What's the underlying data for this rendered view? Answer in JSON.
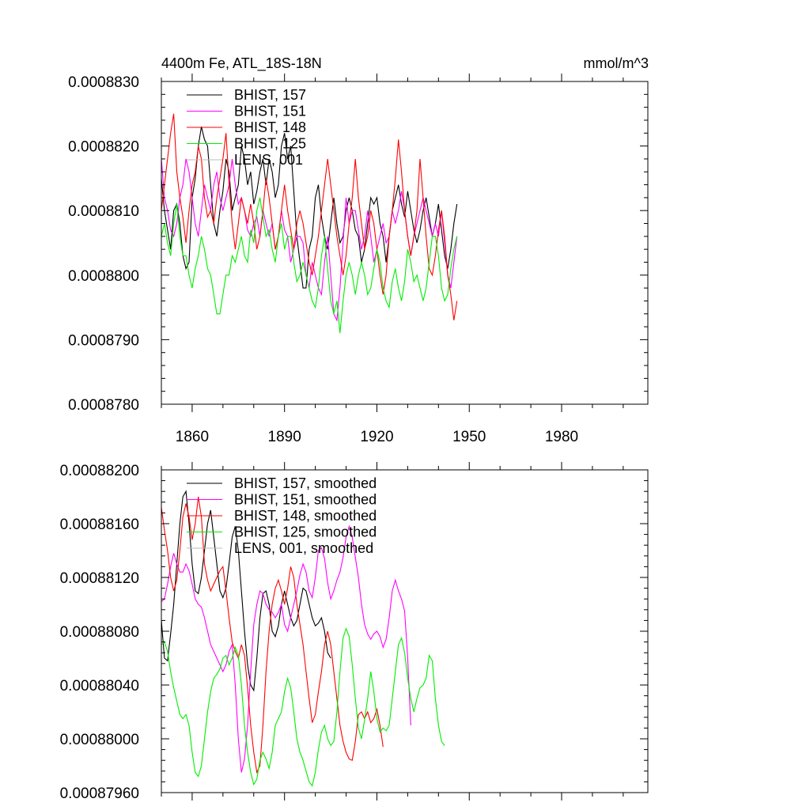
{
  "chart_data": [
    {
      "type": "line",
      "title": "4400m Fe, ATL_18S-18N",
      "units": "mmol/m^3",
      "xlim": [
        1850,
        2008
      ],
      "ylim": [
        0.000878,
        0.000883
      ],
      "xticks": [
        1860,
        1890,
        1920,
        1950,
        1980
      ],
      "xtick_labels": [
        "1860",
        "1890",
        "1920",
        "1950",
        "1980"
      ],
      "yticks": [
        0.000878,
        0.000879,
        0.00088,
        0.000881,
        0.000882,
        0.000883
      ],
      "ytick_labels": [
        "0.0008780",
        "0.0008790",
        "0.0008800",
        "0.0008810",
        "0.0008820",
        "0.0008830"
      ],
      "legend_position": "top-left",
      "series": [
        {
          "name": "BHIST, 157",
          "color": "#000000",
          "x_start": 1850,
          "values": [
            0.0008815,
            0.000881,
            0.0008807,
            0.0008804,
            0.000881,
            0.0008811,
            0.0008808,
            0.0008803,
            0.0008801,
            0.0008802,
            0.0008812,
            0.0008815,
            0.000882,
            0.0008823,
            0.0008821,
            0.000882,
            0.0008814,
            0.0008808,
            0.0008806,
            0.000881,
            0.0008813,
            0.0008818,
            0.0008816,
            0.000881,
            0.0008812,
            0.0008814,
            0.000882,
            0.0008818,
            0.0008814,
            0.0008816,
            0.0008811,
            0.0008813,
            0.0008816,
            0.0008818,
            0.0008814,
            0.0008818,
            0.0008816,
            0.0008812,
            0.0008814,
            0.000882,
            0.0008822,
            0.0008818,
            0.000882,
            0.0008813,
            0.0008806,
            0.0008802,
            0.0008798,
            0.0008798,
            0.0008804,
            0.0008806,
            0.0008812,
            0.0008814,
            0.0008809,
            0.0008806,
            0.0008804,
            0.0008808,
            0.0008812,
            0.0008808,
            0.0008805,
            0.0008806,
            0.000881,
            0.0008812,
            0.000881,
            0.0008807,
            0.0008806,
            0.0008802,
            0.0008804,
            0.0008808,
            0.0008812,
            0.0008811,
            0.0008812,
            0.0008808,
            0.0008806,
            0.0008802,
            0.0008806,
            0.000881,
            0.0008812,
            0.0008814,
            0.0008811,
            0.0008809,
            0.0008813,
            0.000881,
            0.0008807,
            0.0008805,
            0.0008807,
            0.000881,
            0.0008812,
            0.0008809,
            0.0008806,
            0.0008808,
            0.0008811,
            0.0008807,
            0.0008803,
            0.0008801,
            0.0008804,
            0.0008808,
            0.0008811
          ]
        },
        {
          "name": "BHIST, 151",
          "color": "#ff00ff",
          "x_start": 1850,
          "values": [
            0.0008818,
            0.0008812,
            0.000881,
            0.0008807,
            0.0008806,
            0.0008808,
            0.0008812,
            0.0008814,
            0.0008818,
            0.0008816,
            0.0008812,
            0.0008808,
            0.0008806,
            0.000881,
            0.0008814,
            0.0008812,
            0.000881,
            0.0008814,
            0.0008816,
            0.0008812,
            0.000881,
            0.0008812,
            0.0008814,
            0.0008818,
            0.0008814,
            0.0008811,
            0.0008812,
            0.000881,
            0.0008807,
            0.0008806,
            0.0008808,
            0.0008809,
            0.0008806,
            0.000881,
            0.0008808,
            0.0008806,
            0.0008808,
            0.0008804,
            0.0008806,
            0.000881,
            0.0008807,
            0.0008806,
            0.0008802,
            0.0008804,
            0.0008806,
            0.0008806,
            0.0008805,
            0.00088,
            0.0008798,
            0.0008802,
            0.00088,
            0.0008798,
            0.0008797,
            0.0008802,
            0.0008806,
            0.00088,
            0.0008794,
            0.0008793,
            0.0008798,
            0.0008805,
            0.0008812,
            0.0008808,
            0.000881,
            0.000881,
            0.0008807,
            0.0008804,
            0.0008806,
            0.000881,
            0.0008806,
            0.0008802,
            0.0008804,
            0.0008806,
            0.0008808,
            0.0008805,
            0.0008806,
            0.000881,
            0.0008808,
            0.000881,
            0.0008813,
            0.000881,
            0.0008806,
            0.0008803,
            0.0008806,
            0.0008808,
            0.000881,
            0.0008812,
            0.000881,
            0.0008808,
            0.0008806,
            0.0008808,
            0.0008806,
            0.000881,
            0.0008805,
            0.00088,
            0.0008798,
            0.0008802,
            0.0008806
          ]
        },
        {
          "name": "BHIST, 148",
          "color": "#ff0000",
          "x_start": 1850,
          "values": [
            0.000881,
            0.0008814,
            0.0008818,
            0.0008822,
            0.0008825,
            0.0008816,
            0.0008812,
            0.0008809,
            0.0008805,
            0.000881,
            0.0008814,
            0.0008816,
            0.000882,
            0.0008818,
            0.0008812,
            0.0008809,
            0.000881,
            0.0008808,
            0.0008812,
            0.0008815,
            0.0008818,
            0.0008822,
            0.0008814,
            0.0008808,
            0.0008804,
            0.0008808,
            0.0008812,
            0.000881,
            0.0008808,
            0.0008811,
            0.0008808,
            0.0008804,
            0.0008806,
            0.000881,
            0.0008815,
            0.0008812,
            0.0008808,
            0.0008804,
            0.0008806,
            0.000881,
            0.0008814,
            0.000881,
            0.0008807,
            0.0008804,
            0.0008808,
            0.000881,
            0.0008808,
            0.0008805,
            0.0008802,
            0.00088,
            0.0008803,
            0.0008806,
            0.000881,
            0.0008814,
            0.0008818,
            0.0008814,
            0.000881,
            0.0008806,
            0.0008803,
            0.00088,
            0.0008803,
            0.0008808,
            0.0008812,
            0.0008818,
            0.0008812,
            0.0008808,
            0.0008804,
            0.0008806,
            0.000881,
            0.0008808,
            0.0008804,
            0.00088,
            0.0008797,
            0.00088,
            0.0008806,
            0.000881,
            0.0008815,
            0.0008821,
            0.0008816,
            0.000881,
            0.0008806,
            0.0008803,
            0.0008806,
            0.000881,
            0.0008818,
            0.0008812,
            0.0008806,
            0.0008801,
            0.00088,
            0.0008803,
            0.0008807,
            0.000881,
            0.0008806,
            0.00088,
            0.0008797,
            0.0008793,
            0.0008796
          ]
        },
        {
          "name": "BHIST, 125",
          "color": "#00ee00",
          "x_start": 1850,
          "values": [
            0.0008806,
            0.0008808,
            0.0008805,
            0.0008803,
            0.0008808,
            0.0008811,
            0.0008806,
            0.0008803,
            0.0008803,
            0.00088,
            0.0008798,
            0.0008801,
            0.0008803,
            0.0008806,
            0.0008804,
            0.0008801,
            0.00088,
            0.0008797,
            0.0008794,
            0.0008794,
            0.0008797,
            0.00088,
            0.00088,
            0.0008803,
            0.0008802,
            0.0008804,
            0.0008806,
            0.0008803,
            0.0008802,
            0.0008807,
            0.0008805,
            0.000881,
            0.0008812,
            0.0008809,
            0.0008806,
            0.0008807,
            0.0008804,
            0.0008802,
            0.0008806,
            0.0008808,
            0.0008804,
            0.0008806,
            0.0008806,
            0.0008802,
            0.0008799,
            0.00088,
            0.0008802,
            0.00088,
            0.0008798,
            0.0008796,
            0.0008795,
            0.0008798,
            0.0008803,
            0.0008806,
            0.0008801,
            0.0008796,
            0.0008794,
            0.0008796,
            0.0008791,
            0.0008796,
            0.00088,
            0.0008802,
            0.00088,
            0.0008797,
            0.00088,
            0.0008802,
            0.00088,
            0.0008797,
            0.0008798,
            0.0008801,
            0.0008804,
            0.0008802,
            0.0008798,
            0.0008796,
            0.0008795,
            0.0008799,
            0.0008801,
            0.0008798,
            0.0008796,
            0.0008799,
            0.0008804,
            0.0008802,
            0.0008799,
            0.00088,
            0.0008798,
            0.0008796,
            0.0008798,
            0.0008802,
            0.0008806,
            0.0008806,
            0.0008803,
            0.0008798,
            0.0008796,
            0.0008797,
            0.0008801,
            0.0008804,
            0.0008806
          ]
        },
        {
          "name": "LENS, 001",
          "color": "#bbbbbb",
          "x_start": 1850,
          "values": []
        }
      ]
    },
    {
      "type": "line",
      "title": "",
      "units": "",
      "xlim": [
        1850,
        2008
      ],
      "ylim": [
        0.0008796,
        0.000882
      ],
      "xticks": [
        1860,
        1890,
        1920,
        1950,
        1980
      ],
      "xtick_labels": [
        "",
        "",
        "",
        "",
        ""
      ],
      "yticks": [
        0.0008796,
        0.00088,
        0.0008804,
        0.0008808,
        0.0008812,
        0.0008816,
        0.000882
      ],
      "ytick_labels": [
        "0.00087960",
        "0.00088000",
        "0.00088040",
        "0.00088080",
        "0.00088120",
        "0.00088160",
        "0.00088200"
      ],
      "legend_position": "top-left",
      "series": [
        {
          "name": "BHIST, 157, smoothed",
          "color": "#000000",
          "x_start": 1850,
          "values": [
            0.00088088,
            0.0008806,
            0.00088058,
            0.00088078,
            0.000881,
            0.0008813,
            0.0008816,
            0.0008818,
            0.00088184,
            0.0008816,
            0.0008813,
            0.0008811,
            0.00088108,
            0.0008812,
            0.0008814,
            0.0008816,
            0.0008817,
            0.0008815,
            0.0008813,
            0.0008811,
            0.00088105,
            0.00088112,
            0.0008813,
            0.0008815,
            0.00088158,
            0.0008814,
            0.0008811,
            0.0008808,
            0.00088055,
            0.0008804,
            0.00088036,
            0.0008806,
            0.0008809,
            0.00088108,
            0.0008811,
            0.000881,
            0.0008808,
            0.00088076,
            0.00088084,
            0.000881,
            0.0008811,
            0.000881,
            0.0008809,
            0.00088084,
            0.00088088,
            0.000881,
            0.00088112,
            0.0008811,
            0.000881,
            0.0008809,
            0.00088084,
            0.00088086,
            0.0008809,
            0.0008808,
            0.00088064,
            0.0008806
          ]
        },
        {
          "name": "BHIST, 151, smoothed",
          "color": "#ff00ff",
          "x_start": 1850,
          "values": [
            0.00088102,
            0.00088104,
            0.00088115,
            0.00088128,
            0.00088138,
            0.0008813,
            0.00088124,
            0.00088124,
            0.0008813,
            0.00088125,
            0.00088115,
            0.00088104,
            0.000881,
            0.00088098,
            0.0008809,
            0.0008808,
            0.0008807,
            0.00088065,
            0.0008806,
            0.00088055,
            0.0008805,
            0.00088055,
            0.00088065,
            0.0008807,
            0.0008804,
            0.00088,
            0.00087975,
            0.00087985,
            0.0008801,
            0.0008805,
            0.00088085,
            0.000881,
            0.0008811,
            0.00088108,
            0.000881,
            0.00088096,
            0.00088094,
            0.0008809,
            0.00088094,
            0.000881,
            0.00088085,
            0.0008808,
            0.0008809,
            0.000881,
            0.0008811,
            0.00088122,
            0.0008813,
            0.00088124,
            0.0008811,
            0.00088105,
            0.0008812,
            0.0008814,
            0.00088142,
            0.00088134,
            0.00088116,
            0.00088104,
            0.0008811,
            0.00088118,
            0.00088124,
            0.00088135,
            0.0008815,
            0.00088158,
            0.0008815,
            0.00088135,
            0.0008812,
            0.000881,
            0.00088085,
            0.00088078,
            0.00088074,
            0.00088078,
            0.0008808,
            0.00088076,
            0.00088068,
            0.00088074,
            0.0008809,
            0.0008811,
            0.00088118,
            0.0008811,
            0.00088104,
            0.00088095,
            0.0008806,
            0.0008801
          ]
        },
        {
          "name": "BHIST, 148, smoothed",
          "color": "#ff0000",
          "x_start": 1850,
          "values": [
            0.00088172,
            0.00088155,
            0.0008814,
            0.0008812,
            0.0008811,
            0.00088118,
            0.0008814,
            0.00088165,
            0.00088175,
            0.00088165,
            0.00088148,
            0.0008816,
            0.0008818,
            0.00088165,
            0.0008813,
            0.00088118,
            0.0008811,
            0.00088115,
            0.0008812,
            0.00088125,
            0.00088128,
            0.0008811,
            0.0008809,
            0.00088072,
            0.00088065,
            0.0008806,
            0.0008807,
            0.00088062,
            0.00088038,
            0.0008801,
            0.0008799,
            0.00087975,
            0.0008798,
            0.0008801,
            0.0008805,
            0.0008808,
            0.000881,
            0.00088112,
            0.00088118,
            0.0008811,
            0.000881,
            0.00088112,
            0.00088128,
            0.0008812,
            0.000881,
            0.00088085,
            0.0008807,
            0.0008805,
            0.0008803,
            0.00088012,
            0.00088018,
            0.00088035,
            0.0008805,
            0.0008807,
            0.0008808,
            0.0008807,
            0.0008805,
            0.0008803,
            0.0008801,
            0.00087998,
            0.0008799,
            0.00087985,
            0.00087984,
            0.00087998,
            0.00088018,
            0.0008802,
            0.00088015,
            0.0008802,
            0.00088012,
            0.00088015,
            0.00088022,
            0.0008801,
            0.00087994
          ]
        },
        {
          "name": "BHIST, 125, smoothed",
          "color": "#00ee00",
          "x_start": 1850,
          "values": [
            0.0008807,
            0.00088072,
            0.00088065,
            0.0008805,
            0.00088038,
            0.00088028,
            0.00088018,
            0.00088015,
            0.00088018,
            0.0008801,
            0.0008799,
            0.00087975,
            0.00087972,
            0.0008798,
            0.00088,
            0.0008802,
            0.00088035,
            0.00088045,
            0.00088048,
            0.00088052,
            0.0008806,
            0.00088062,
            0.00088055,
            0.0008806,
            0.00088068,
            0.00088062,
            0.0008804,
            0.0008801,
            0.0008799,
            0.00087975,
            0.00087966,
            0.0008797,
            0.00087984,
            0.0008799,
            0.00087985,
            0.00087978,
            0.0008799,
            0.0008801,
            0.00088015,
            0.0008802,
            0.00088035,
            0.00088045,
            0.00088038,
            0.0008802,
            0.00088,
            0.0008799,
            0.00087984,
            0.00087976,
            0.00087968,
            0.00087965,
            0.00087975,
            0.00087992,
            0.00088005,
            0.0008801,
            0.00088,
            0.00087995,
            0.00087998,
            0.0008802,
            0.0008805,
            0.00088075,
            0.00088082,
            0.00088076,
            0.00088055,
            0.0008803,
            0.00088008,
            0.00088,
            0.00088014,
            0.0008803,
            0.0008805,
            0.00088035,
            0.00088015,
            0.00088005,
            0.00088008,
            0.00088006,
            0.0008801,
            0.0008803,
            0.0008805,
            0.0008807,
            0.00088075,
            0.00088064,
            0.00088045,
            0.0008803,
            0.0008802,
            0.0008803,
            0.00088038,
            0.0008804,
            0.00088045,
            0.00088062,
            0.00088058,
            0.0008803,
            0.0008801,
            0.00087998,
            0.00087995
          ]
        },
        {
          "name": "LENS, 001, smoothed",
          "color": "#bbbbbb",
          "x_start": 1850,
          "values": []
        }
      ]
    }
  ]
}
